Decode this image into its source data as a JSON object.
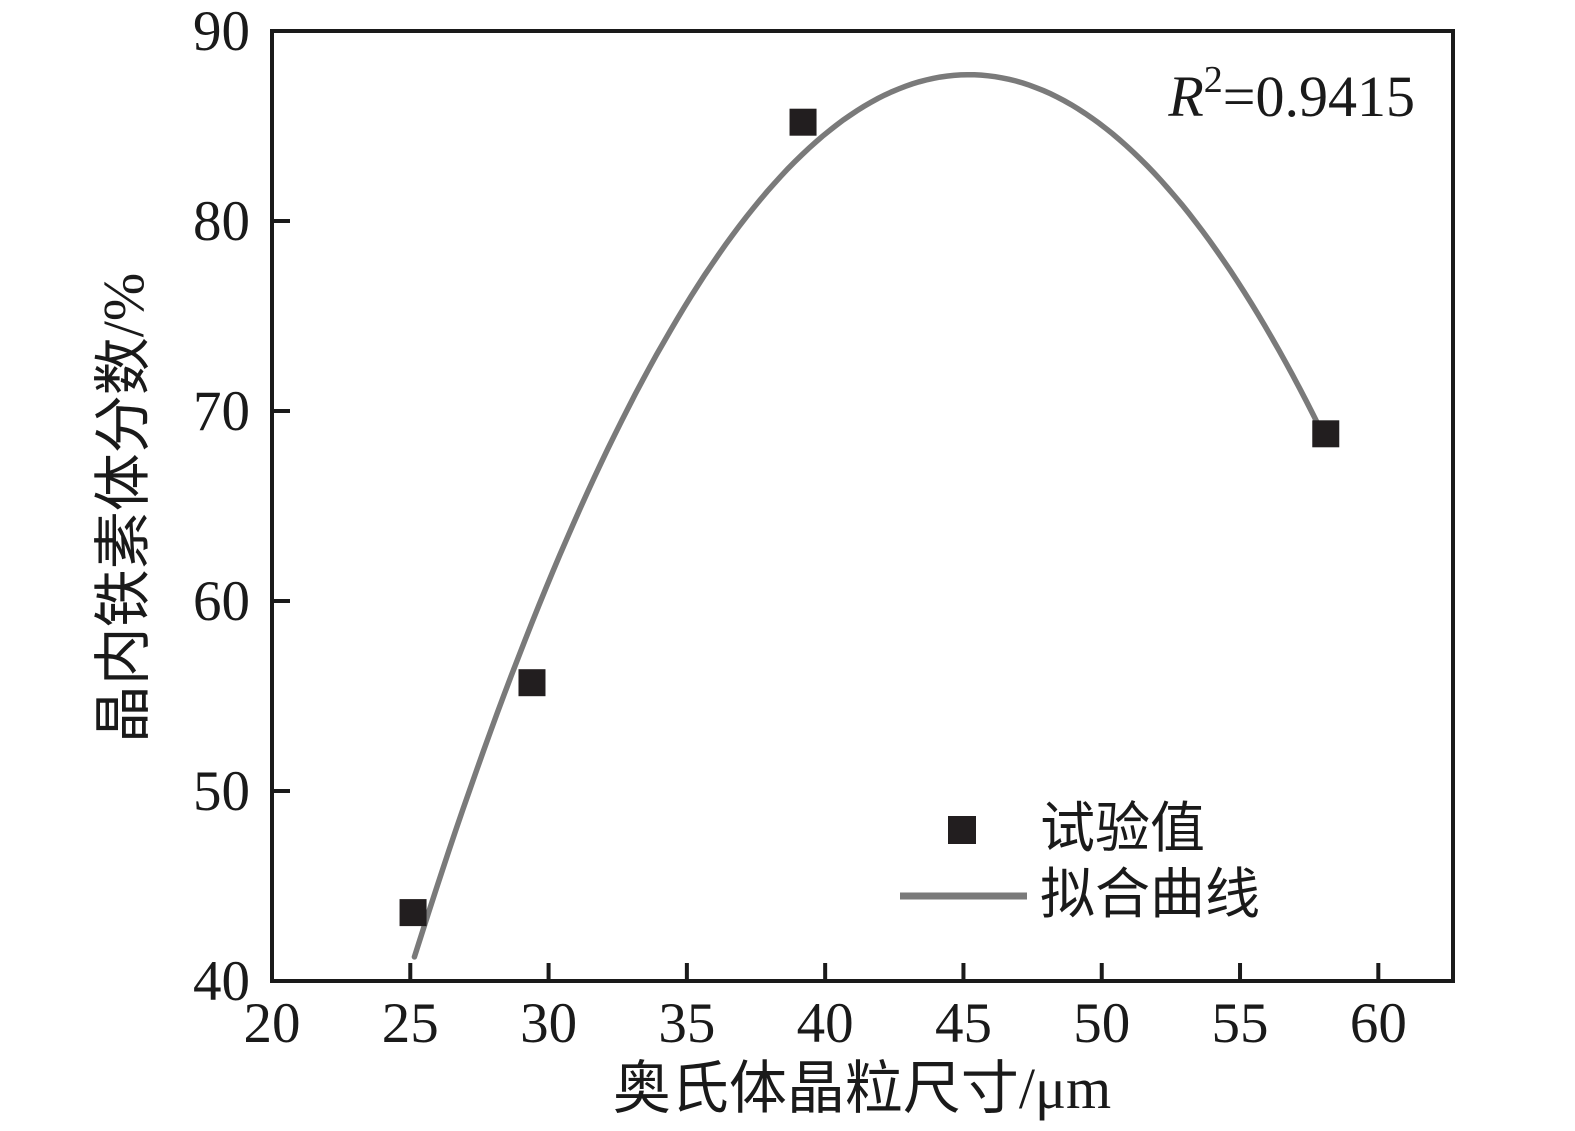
{
  "chart_data": {
    "type": "scatter",
    "title": "",
    "xlabel": "奥氏体晶粒尺寸/μm",
    "ylabel": "晶内铁素体分数/%",
    "xlim": [
      20,
      62.7
    ],
    "ylim": [
      40,
      90
    ],
    "x_ticks": [
      20,
      25,
      30,
      35,
      40,
      45,
      50,
      55,
      60
    ],
    "y_ticks": [
      40,
      50,
      60,
      70,
      80,
      90
    ],
    "grid": false,
    "axis_color": "#1a1a1a",
    "legend_position": "lower-right-inside",
    "series": [
      {
        "name": "试验值",
        "type": "scatter",
        "marker": "square",
        "color": "#221e1f",
        "points": [
          [
            25.1,
            43.6
          ],
          [
            29.4,
            55.7
          ],
          [
            39.2,
            85.2
          ],
          [
            58.1,
            68.8
          ]
        ]
      },
      {
        "name": "拟合曲线",
        "type": "quadratic_fit",
        "color": "#7a7a7a",
        "a": -0.1155,
        "peak_x": 45.2,
        "peak_y": 87.7,
        "x_start": 25.15,
        "x_end": 58.1
      }
    ],
    "annotation": {
      "r_label": "R",
      "exponent": "2",
      "value": "=0.9415"
    }
  }
}
